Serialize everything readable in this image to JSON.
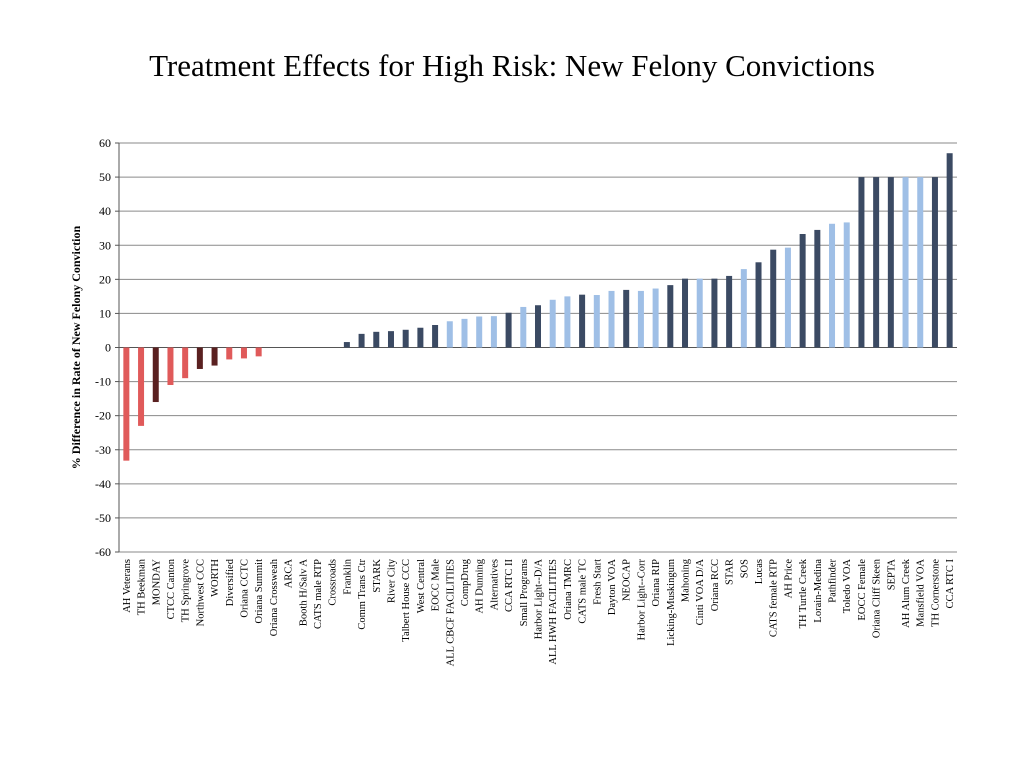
{
  "chart_data": {
    "type": "bar",
    "title": "Treatment Effects for High Risk: New Felony Convictions",
    "ylabel": "% Difference in Rate of New Felony Conviction",
    "xlabel": "",
    "ylim": [
      -60,
      60
    ],
    "yticks": [
      60,
      50,
      40,
      30,
      20,
      10,
      0,
      -10,
      -20,
      -30,
      -40,
      -50,
      -60
    ],
    "grid": true,
    "legend": "none",
    "colors": {
      "light_red": "#e05a5a",
      "dark_red": "#5a2020",
      "dark_blue": "#3b4a63",
      "light_blue": "#9fbfe6"
    },
    "categories": [
      "AH Veterans",
      "TH Beekman",
      "MONDAY",
      "CTCC Canton",
      "TH Springrove",
      "Northwest CCC",
      "WORTH",
      "Diversified",
      "Oriana CCTC",
      "Oriana Summit",
      "Oriana Crossweah",
      "ARCA",
      "Booth H/Salv A",
      "CATS male RTP",
      "Crossroads",
      "Franklin",
      "Comm Trans Ctr",
      "STARK",
      "River City",
      "Talbert House CCC",
      "West Central",
      "EOCC Male",
      "ALL CBCF FACILITIES",
      "CompDrug",
      "AH Dunning",
      "Alternatives",
      "CCA RTC II",
      "Small Programs",
      "Harbor Light--D/A",
      "ALL HWH FACILITIES",
      "Oriana TMRC",
      "CATS male TC",
      "Fresh Start",
      "Dayton VOA",
      "NEOCAP",
      "Harbor Light--Corr",
      "Oriana RIP",
      "Licking-Muskingum",
      "Mahoning",
      "Cinti VOA D/A",
      "Oriana RCC",
      "STAR",
      "SOS",
      "Lucas",
      "CATS female RTP",
      "AH Price",
      "TH Turtle Creek",
      "Lorain-Medina",
      "Pathfinder",
      "Toledo VOA",
      "EOCC Female",
      "Oriana Cliff Skeen",
      "SEPTA",
      "AH Alum Creek",
      "Mansfield VOA",
      "TH Cornerstone",
      "CCA RTC I"
    ],
    "values": [
      -33.2,
      -23.0,
      -16.0,
      -11.0,
      -9.0,
      -6.3,
      -5.3,
      -3.5,
      -3.2,
      -2.6,
      0,
      0,
      0,
      0,
      0,
      1.6,
      4.0,
      4.6,
      4.8,
      5.2,
      5.8,
      6.6,
      7.7,
      8.4,
      9.1,
      9.2,
      10.2,
      11.9,
      12.4,
      14.0,
      15.0,
      15.5,
      15.4,
      16.6,
      16.9,
      16.6,
      17.3,
      18.3,
      20.2,
      20.2,
      20.2,
      21.0,
      23.0,
      25.0,
      28.7,
      29.3,
      33.3,
      34.5,
      36.3,
      36.7,
      50,
      50,
      50,
      50,
      50,
      50,
      57.0
    ],
    "bar_colors": [
      "light_red",
      "light_red",
      "dark_red",
      "light_red",
      "light_red",
      "dark_red",
      "dark_red",
      "light_red",
      "light_red",
      "light_red",
      "light_red",
      "light_red",
      "light_red",
      "light_red",
      "light_red",
      "dark_blue",
      "dark_blue",
      "dark_blue",
      "dark_blue",
      "dark_blue",
      "dark_blue",
      "dark_blue",
      "light_blue",
      "light_blue",
      "light_blue",
      "light_blue",
      "dark_blue",
      "light_blue",
      "dark_blue",
      "light_blue",
      "light_blue",
      "dark_blue",
      "light_blue",
      "light_blue",
      "dark_blue",
      "light_blue",
      "light_blue",
      "dark_blue",
      "dark_blue",
      "light_blue",
      "dark_blue",
      "dark_blue",
      "light_blue",
      "dark_blue",
      "dark_blue",
      "light_blue",
      "dark_blue",
      "dark_blue",
      "light_blue",
      "light_blue",
      "dark_blue",
      "dark_blue",
      "dark_blue",
      "light_blue",
      "light_blue",
      "dark_blue",
      "dark_blue"
    ]
  }
}
